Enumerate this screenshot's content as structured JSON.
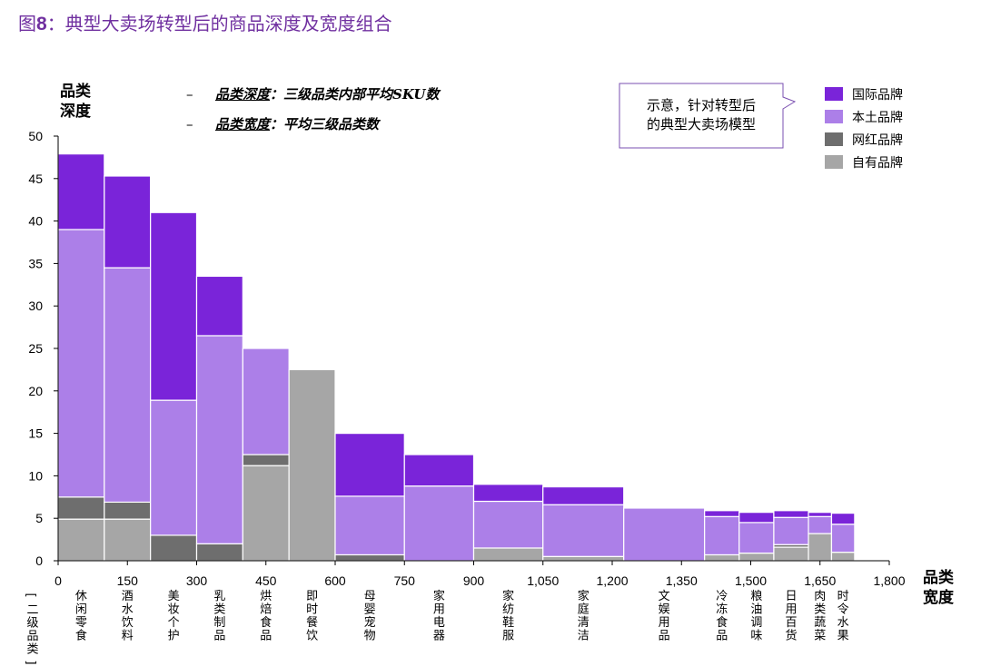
{
  "page": {
    "figure_number": "8",
    "figure_prefix": "图",
    "title": "：典型大卖场转型后的商品深度及宽度组合"
  },
  "notes": {
    "depth_label": "品类深度",
    "depth_text": "：三级品类内部平均SKU数",
    "width_label": "品类宽度",
    "width_text": "：平均三级品类数",
    "callout": [
      "示意，针对转型后",
      "的典型大卖场模型"
    ]
  },
  "colors": {
    "international": "#7A24D9",
    "domestic": "#AC7FE8",
    "internet": "#6E6E6E",
    "private": "#A6A6A6"
  },
  "chart_data": {
    "type": "bar",
    "variant": "marimekko (variable-width stacked bar)",
    "ylabel": "品类深度",
    "xlabel": "品类宽度",
    "x_unit_label": "[二级品类]",
    "ylim": [
      0,
      50
    ],
    "yticks": [
      0,
      5,
      10,
      15,
      20,
      25,
      30,
      35,
      40,
      45,
      50
    ],
    "xlim": [
      0,
      1800
    ],
    "xtick_labels": [
      "0",
      "150",
      "300",
      "450",
      "600",
      "750",
      "900",
      "1,050",
      "1,200",
      "1,350",
      "1,500",
      "1,650",
      "1,800"
    ],
    "xtick_values": [
      0,
      150,
      300,
      450,
      600,
      750,
      900,
      1050,
      1200,
      1350,
      1500,
      1650,
      1800
    ],
    "legend": [
      "国际品牌",
      "本土品牌",
      "网红品牌",
      "自有品牌"
    ],
    "legend_position": "top-right",
    "grid": false,
    "categories": [
      {
        "name": "休闲零食",
        "start": 0,
        "end": 100,
        "segments": {
          "自有品牌": 4.9,
          "网红品牌": 2.6,
          "本土品牌": 31.5,
          "国际品牌": 8.9
        }
      },
      {
        "name": "酒水饮料",
        "start": 100,
        "end": 200,
        "segments": {
          "自有品牌": 4.9,
          "网红品牌": 2.0,
          "本土品牌": 27.6,
          "国际品牌": 10.8
        }
      },
      {
        "name": "美妆个护",
        "start": 200,
        "end": 300,
        "segments": {
          "自有品牌": 0,
          "网红品牌": 3.0,
          "本土品牌": 15.9,
          "国际品牌": 22.1
        }
      },
      {
        "name": "乳类制品",
        "start": 300,
        "end": 400,
        "segments": {
          "自有品牌": 0,
          "网红品牌": 2.0,
          "本土品牌": 24.5,
          "国际品牌": 7.0
        }
      },
      {
        "name": "烘焙食品",
        "start": 400,
        "end": 500,
        "segments": {
          "自有品牌": 11.2,
          "网红品牌": 1.3,
          "本土品牌": 12.5,
          "国际品牌": 0
        }
      },
      {
        "name": "即时餐饮",
        "start": 500,
        "end": 600,
        "segments": {
          "自有品牌": 22.5,
          "网红品牌": 0,
          "本土品牌": 0,
          "国际品牌": 0
        }
      },
      {
        "name": "母婴宠物",
        "start": 600,
        "end": 750,
        "segments": {
          "自有品牌": 0,
          "网红品牌": 0.7,
          "本土品牌": 6.9,
          "国际品牌": 7.4
        }
      },
      {
        "name": "家用电器",
        "start": 750,
        "end": 900,
        "segments": {
          "自有品牌": 0,
          "网红品牌": 0,
          "本土品牌": 8.8,
          "国际品牌": 3.7
        }
      },
      {
        "name": "家纺鞋服",
        "start": 900,
        "end": 1050,
        "segments": {
          "自有品牌": 1.5,
          "网红品牌": 0,
          "本土品牌": 5.5,
          "国际品牌": 2.0
        }
      },
      {
        "name": "家庭清洁",
        "start": 1050,
        "end": 1225,
        "segments": {
          "自有品牌": 0.5,
          "网红品牌": 0,
          "本土品牌": 6.1,
          "国际品牌": 2.1
        }
      },
      {
        "name": "文娱用品",
        "start": 1225,
        "end": 1400,
        "segments": {
          "自有品牌": 0,
          "网红品牌": 0,
          "本土品牌": 6.2,
          "国际品牌": 0
        }
      },
      {
        "name": "冷冻食品",
        "start": 1400,
        "end": 1475,
        "segments": {
          "自有品牌": 0.7,
          "网红品牌": 0,
          "本土品牌": 4.5,
          "国际品牌": 0.7
        }
      },
      {
        "name": "粮油调味",
        "start": 1475,
        "end": 1550,
        "segments": {
          "自有品牌": 0.9,
          "网红品牌": 0,
          "本土品牌": 3.6,
          "国际品牌": 1.2
        }
      },
      {
        "name": "日用百货",
        "start": 1550,
        "end": 1625,
        "segments": {
          "自有品牌": 1.6,
          "网红品牌": 0.3,
          "本土品牌": 3.2,
          "国际品牌": 0.8
        }
      },
      {
        "name": "肉类蔬菜",
        "start": 1625,
        "end": 1675,
        "segments": {
          "自有品牌": 3.2,
          "网红品牌": 0,
          "本土品牌": 2.0,
          "国际品牌": 0.5
        }
      },
      {
        "name": "时令水果",
        "start": 1675,
        "end": 1725,
        "segments": {
          "自有品牌": 1.0,
          "网红品牌": 0,
          "本土品牌": 3.3,
          "国际品牌": 1.3
        }
      }
    ]
  }
}
